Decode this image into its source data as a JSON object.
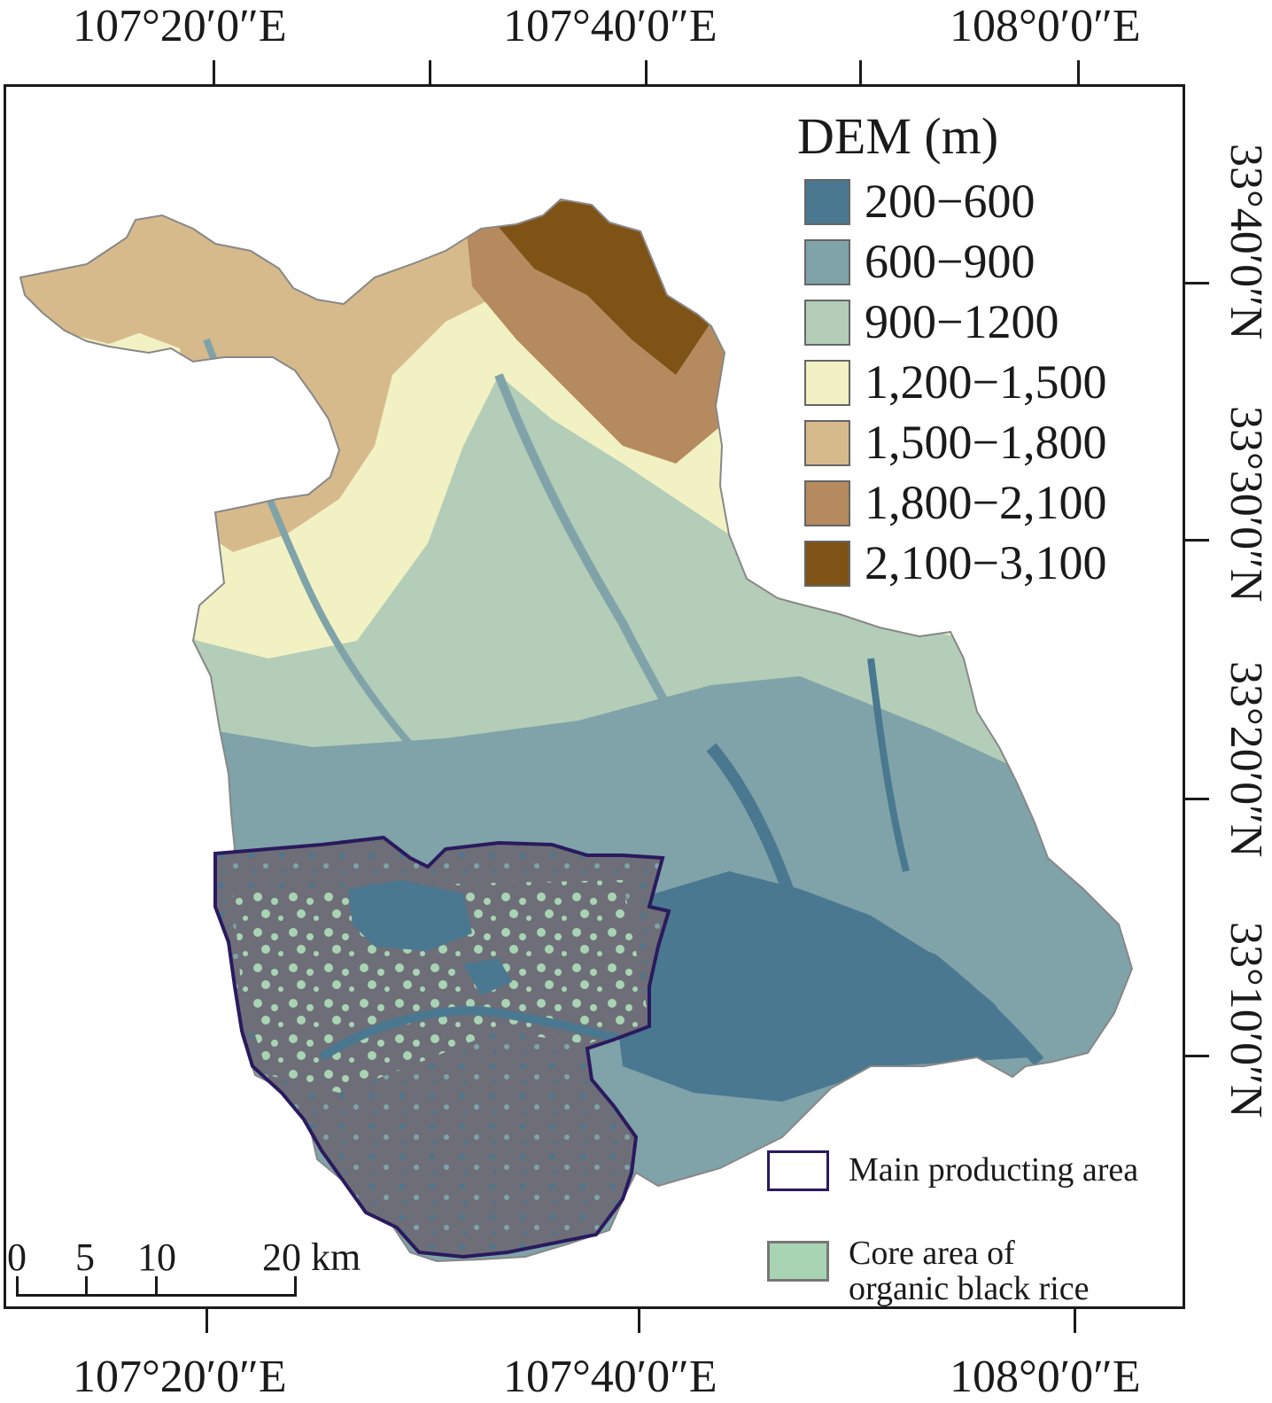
{
  "axes": {
    "top_labels": [
      "107°20′0″E",
      "107°40′0″E",
      "108°0′0″E"
    ],
    "bottom_labels": [
      "107°20′0″E",
      "107°40′0″E",
      "108°0′0″E"
    ],
    "right_labels": [
      "33°40′0″N",
      "33°30′0″N",
      "33°20′0″N",
      "33°10′0″N"
    ]
  },
  "legend": {
    "title": "DEM (m)",
    "classes": [
      {
        "label": "200−600",
        "color": "#4a7890"
      },
      {
        "label": "600−900",
        "color": "#7fa3a8"
      },
      {
        "label": "900−1200",
        "color": "#b3cdb8"
      },
      {
        "label": "1,200−1,500",
        "color": "#f2f1c3"
      },
      {
        "label": "1,500−1,800",
        "color": "#d7ba8c"
      },
      {
        "label": "1,800−2,100",
        "color": "#b58a5e"
      },
      {
        "label": "2,100−3,100",
        "color": "#7f5216"
      }
    ],
    "overlays": [
      {
        "label": "Main producting area",
        "color": "#2a1a5e",
        "style": "outline"
      },
      {
        "label": "Core area of\norganic black rice",
        "color": "#a9d4b4",
        "style": "fill"
      }
    ]
  },
  "scale_bar": {
    "ticks": [
      "0",
      "5",
      "10",
      "20 km"
    ],
    "unit": "km"
  },
  "colors": {
    "mask": "#6e6e78",
    "frame": "#1a1a1a"
  }
}
